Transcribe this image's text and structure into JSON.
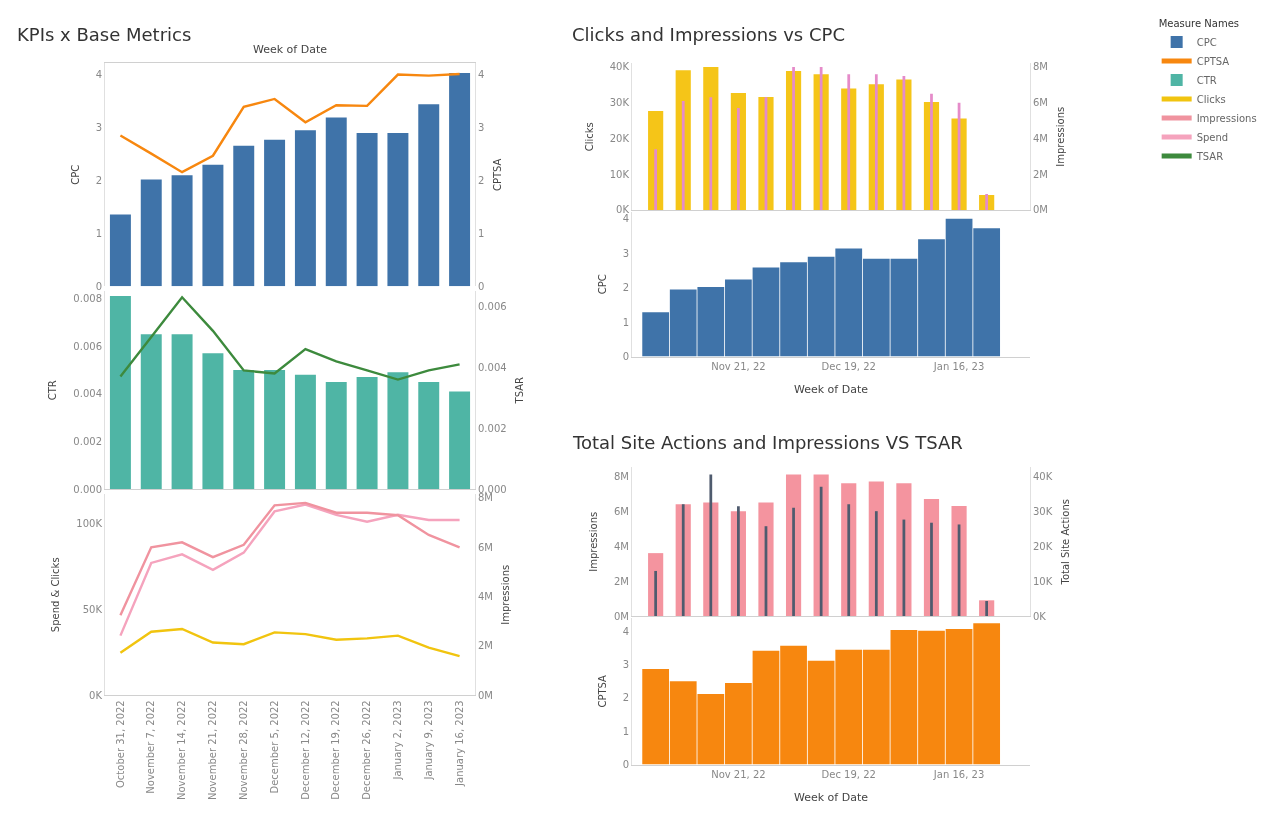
{
  "chart_data": [
    {
      "type": "bar",
      "title": "KPIs x Base Metrics",
      "xlabel": "Week of Date",
      "ylabel": "CPC",
      "y2label": "CPTSA",
      "legend": "top right",
      "legend_title": "Measure Names",
      "tick_labels": "y",
      "categories": [
        null,
        null,
        null,
        null,
        null,
        null,
        null,
        null,
        null,
        null,
        null,
        null
      ],
      "ylim": [
        0,
        4.2
      ],
      "yticks": [
        0,
        1,
        2,
        3,
        4
      ],
      "y2lim": [
        0,
        4.2
      ],
      "y2ticks": [
        0,
        1,
        2,
        3,
        4
      ],
      "series": [
        {
          "name": "CPC",
          "type": "bar",
          "color": "#3f73a9",
          "values": [
            1.35,
            2.01,
            2.09,
            2.29,
            2.65,
            2.76,
            2.94,
            3.18,
            2.89,
            2.89,
            3.43,
            4.02
          ]
        },
        {
          "name": "CPTSA",
          "type": "line",
          "axis": "y2",
          "color": "#f7870f",
          "values": [
            2.84,
            2.5,
            2.15,
            2.46,
            3.38,
            3.53,
            3.09,
            3.41,
            3.4,
            3.99,
            3.97,
            4.0
          ]
        }
      ]
    },
    {
      "type": "bar",
      "ylabel": "CTR",
      "y2label": "TSAR",
      "tick_labels": "y",
      "legend": "top right",
      "categories": [
        null,
        null,
        null,
        null,
        null,
        null,
        null,
        null,
        null,
        null,
        null,
        null
      ],
      "ylim": [
        0,
        0.0083
      ],
      "yticks": [
        {
          "value": 0,
          "label": "0.000"
        },
        {
          "value": 0.002,
          "label": "0.002"
        },
        {
          "value": 0.004,
          "label": "0.004"
        },
        {
          "value": 0.006,
          "label": "0.006"
        },
        {
          "value": 0.008,
          "label": "0.008"
        }
      ],
      "y2lim": [
        0,
        0.0065
      ],
      "y2ticks": [
        {
          "value": 0,
          "label": "0.000"
        },
        {
          "value": 0.002,
          "label": "0.002"
        },
        {
          "value": 0.004,
          "label": "0.004"
        },
        {
          "value": 0.006,
          "label": "0.006"
        }
      ],
      "series": [
        {
          "name": "CTR",
          "type": "bar",
          "color": "#4fb5a5",
          "values": [
            0.0081,
            0.0065,
            0.0065,
            0.0057,
            0.005,
            0.005,
            0.0048,
            0.0045,
            0.0047,
            0.0049,
            0.0045,
            0.0041
          ]
        },
        {
          "name": "TSAR",
          "type": "line",
          "axis": "y2",
          "color": "#3d8a3d",
          "values": [
            0.0037,
            0.005,
            0.0063,
            0.0052,
            0.0039,
            0.0038,
            0.0046,
            0.0042,
            0.0039,
            0.0036,
            0.0039,
            0.0041
          ]
        }
      ]
    },
    {
      "type": "line",
      "ylabel": "Spend & Clicks",
      "y2label": "Impressions",
      "legend": "top right",
      "categories": [
        "October 31, 2022",
        "November 7, 2022",
        "November 14, 2022",
        "November 21, 2022",
        "November 28, 2022",
        "December 5, 2022",
        "December 12, 2022",
        "December 19, 2022",
        "December 26, 2022",
        "January 2, 2023",
        "January 9, 2023",
        "January 16, 2023"
      ],
      "ylim": [
        0,
        117000
      ],
      "yticks": [
        {
          "value": 0,
          "label": "0K"
        },
        {
          "value": 50000,
          "label": "50K"
        },
        {
          "value": 100000,
          "label": "100K"
        }
      ],
      "y2lim": [
        0,
        8150000
      ],
      "y2ticks": [
        {
          "value": 0,
          "label": "0M"
        },
        {
          "value": 2000000,
          "label": "2M"
        },
        {
          "value": 4000000,
          "label": "4M"
        },
        {
          "value": 6000000,
          "label": "6M"
        },
        {
          "value": 8000000,
          "label": "8M"
        }
      ],
      "series": [
        {
          "name": "Spend",
          "color": "#f5a3bd",
          "values": [
            34700,
            77000,
            82000,
            73000,
            83000,
            107000,
            111000,
            105000,
            101000,
            105000,
            102000,
            102000
          ]
        },
        {
          "name": "Impressions",
          "axis": "y2",
          "color": "#f0939f",
          "values": [
            3240000,
            6000000,
            6200000,
            5600000,
            6100000,
            7700000,
            7800000,
            7400000,
            7400000,
            7300000,
            6500000,
            6000000
          ]
        },
        {
          "name": "Clicks",
          "color": "#f1c40f",
          "values": [
            24800,
            37000,
            38600,
            30700,
            29700,
            36600,
            35600,
            32300,
            33100,
            34700,
            27700,
            22800
          ]
        }
      ]
    },
    {
      "type": "bar",
      "title": "Clicks and Impressions vs CPC",
      "ylabel": "Clicks",
      "y2label": "Impressions",
      "tick_labels": "y",
      "x": [
        "2022-10-31",
        "2022-11-07",
        "2022-11-14",
        "2022-11-21",
        "2022-11-28",
        "2022-12-05",
        "2022-12-12",
        "2022-12-19",
        "2022-12-26",
        "2023-01-02",
        "2023-01-09",
        "2023-01-16",
        "2023-01-23"
      ],
      "xlim": [
        "2022-10-25",
        "2023-02-03"
      ],
      "ylim": [
        0,
        41000
      ],
      "yticks": [
        {
          "value": 0,
          "label": "0K"
        },
        {
          "value": 10000,
          "label": "10K"
        },
        {
          "value": 20000,
          "label": "20K"
        },
        {
          "value": 30000,
          "label": "30K"
        },
        {
          "value": 40000,
          "label": "40K"
        }
      ],
      "y2lim": [
        0,
        8200000
      ],
      "y2ticks": [
        {
          "value": 0,
          "label": "0M"
        },
        {
          "value": 2000000,
          "label": "2M"
        },
        {
          "value": 4000000,
          "label": "4M"
        },
        {
          "value": 6000000,
          "label": "6M"
        },
        {
          "value": 8000000,
          "label": "8M"
        }
      ],
      "series": [
        {
          "color": "#f5c518",
          "values": [
            27700,
            39100,
            40000,
            32700,
            31600,
            38900,
            38000,
            34000,
            35200,
            36500,
            30200,
            25600,
            4200
          ]
        },
        {
          "axis": "y2",
          "color": "#e58bc9",
          "values": [
            3400000,
            6100000,
            6300000,
            5700000,
            6300000,
            8000000,
            8000000,
            7600000,
            7600000,
            7500000,
            6500000,
            6000000,
            900000
          ]
        }
      ]
    },
    {
      "type": "bar",
      "ylabel": "CPC",
      "xlabel": "Week of Date",
      "x": [
        "2022-10-31",
        "2022-11-07",
        "2022-11-14",
        "2022-11-21",
        "2022-11-28",
        "2022-12-05",
        "2022-12-12",
        "2022-12-19",
        "2022-12-26",
        "2023-01-02",
        "2023-01-09",
        "2023-01-16",
        "2023-01-23"
      ],
      "xlim": [
        "2022-10-25",
        "2023-02-03"
      ],
      "xticks": [
        {
          "value": "2022-11-21",
          "label": "Nov 21, 22"
        },
        {
          "value": "2022-12-19",
          "label": "Dec 19, 22"
        },
        {
          "value": "2023-01-16",
          "label": "Jan 16, 23"
        }
      ],
      "ylim": [
        0,
        4.2
      ],
      "yticks": [
        0,
        1,
        2,
        3,
        4
      ],
      "series": [
        {
          "color": "#3f73a9",
          "values": [
            1.29,
            1.95,
            2.02,
            2.24,
            2.59,
            2.74,
            2.9,
            3.14,
            2.84,
            2.84,
            3.41,
            4.0,
            3.73
          ]
        }
      ]
    },
    {
      "type": "bar",
      "title": "Total Site Actions and Impressions VS TSAR",
      "ylabel": "Impressions",
      "y2label": "Total Site Actions",
      "tick_labels": "y",
      "x": [
        "2022-10-31",
        "2022-11-07",
        "2022-11-14",
        "2022-11-21",
        "2022-11-28",
        "2022-12-05",
        "2022-12-12",
        "2022-12-19",
        "2022-12-26",
        "2023-01-02",
        "2023-01-09",
        "2023-01-16",
        "2023-01-23"
      ],
      "xlim": [
        "2022-10-25",
        "2023-02-03"
      ],
      "ylim": [
        0,
        8500000
      ],
      "yticks": [
        {
          "value": 0,
          "label": "0M"
        },
        {
          "value": 2000000,
          "label": "2M"
        },
        {
          "value": 4000000,
          "label": "4M"
        },
        {
          "value": 6000000,
          "label": "6M"
        },
        {
          "value": 8000000,
          "label": "8M"
        }
      ],
      "y2lim": [
        0,
        42500
      ],
      "y2ticks": [
        {
          "value": 0,
          "label": "0K"
        },
        {
          "value": 10000,
          "label": "10K"
        },
        {
          "value": 20000,
          "label": "20K"
        },
        {
          "value": 30000,
          "label": "30K"
        },
        {
          "value": 40000,
          "label": "40K"
        }
      ],
      "series": [
        {
          "color": "#f4949f",
          "values": [
            3600000,
            6400000,
            6500000,
            6000000,
            6500000,
            8100000,
            8100000,
            7600000,
            7700000,
            7600000,
            6700000,
            6300000,
            900000
          ]
        },
        {
          "axis": "y2",
          "color": "#4f5b6e",
          "values": [
            12900,
            32000,
            40500,
            31400,
            25700,
            31000,
            37000,
            32000,
            30000,
            27600,
            26700,
            26200,
            4300
          ]
        }
      ]
    },
    {
      "type": "bar",
      "ylabel": "CPTSA",
      "xlabel": "Week of Date",
      "x": [
        "2022-10-31",
        "2022-11-07",
        "2022-11-14",
        "2022-11-21",
        "2022-11-28",
        "2022-12-05",
        "2022-12-12",
        "2022-12-19",
        "2022-12-26",
        "2023-01-02",
        "2023-01-09",
        "2023-01-16",
        "2023-01-23"
      ],
      "xlim": [
        "2022-10-25",
        "2023-02-03"
      ],
      "xticks": [
        {
          "value": "2022-11-21",
          "label": "Nov 21, 22"
        },
        {
          "value": "2022-12-19",
          "label": "Dec 19, 22"
        },
        {
          "value": "2023-01-16",
          "label": "Jan 16, 23"
        }
      ],
      "ylim": [
        0,
        4.4
      ],
      "yticks": [
        0,
        1,
        2,
        3,
        4
      ],
      "series": [
        {
          "color": "#f7870f",
          "values": [
            2.87,
            2.5,
            2.12,
            2.45,
            3.42,
            3.57,
            3.12,
            3.45,
            3.45,
            4.04,
            4.02,
            4.07,
            4.24
          ]
        }
      ]
    }
  ]
}
